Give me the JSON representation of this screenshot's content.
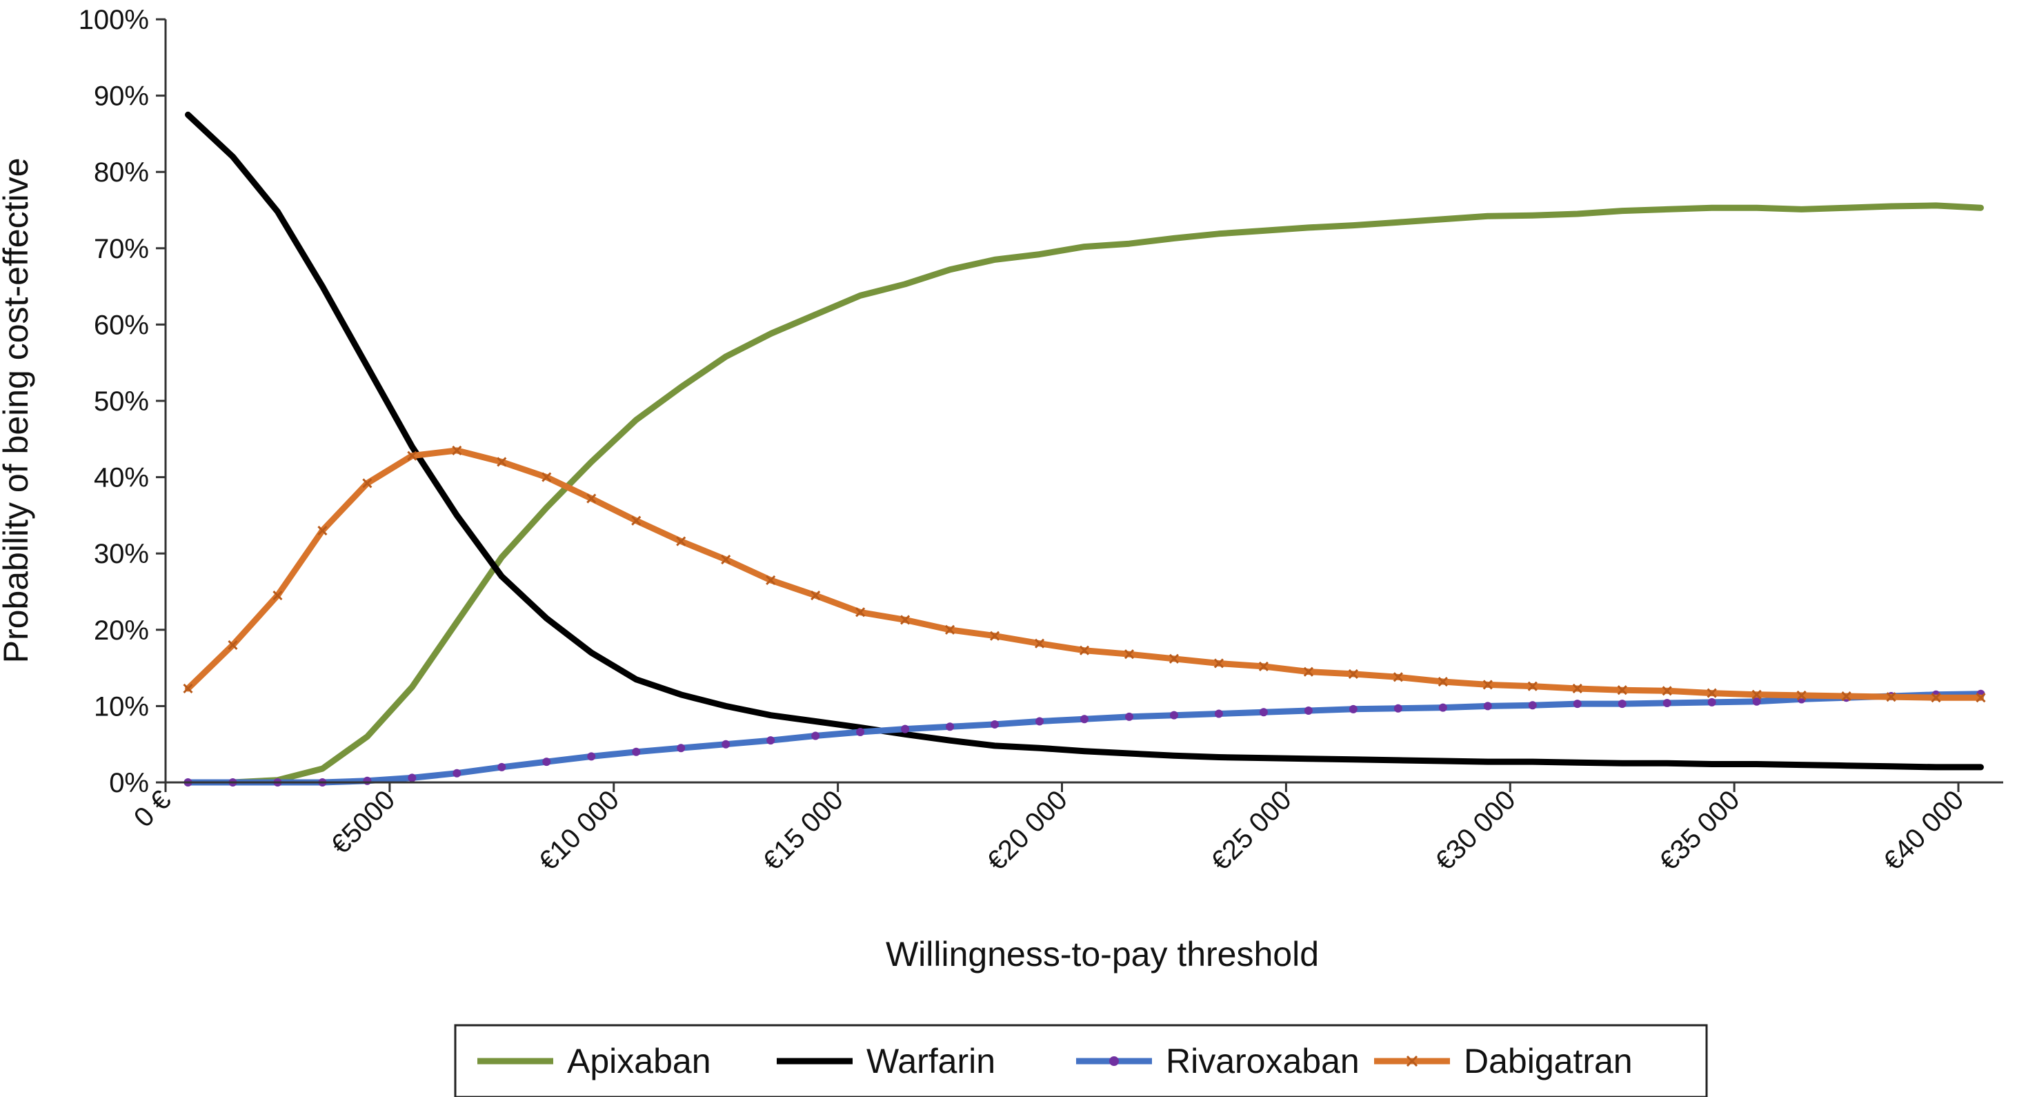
{
  "chart_data": {
    "type": "line",
    "xlabel": "Willingness-to-pay threshold",
    "ylabel": "Probability of being cost-effective",
    "xlim": [
      0,
      41000
    ],
    "ylim": [
      0,
      100
    ],
    "x_ticks": [
      {
        "value": 0,
        "label": "0 €"
      },
      {
        "value": 5000,
        "label": "€5000"
      },
      {
        "value": 10000,
        "label": "€10 000"
      },
      {
        "value": 15000,
        "label": "€15 000"
      },
      {
        "value": 20000,
        "label": "€20 000"
      },
      {
        "value": 25000,
        "label": "€25 000"
      },
      {
        "value": 30000,
        "label": "€30 000"
      },
      {
        "value": 35000,
        "label": "€35 000"
      },
      {
        "value": 40000,
        "label": "€40 000"
      }
    ],
    "y_ticks": [
      {
        "value": 0,
        "label": "0%"
      },
      {
        "value": 10,
        "label": "10%"
      },
      {
        "value": 20,
        "label": "20%"
      },
      {
        "value": 30,
        "label": "30%"
      },
      {
        "value": 40,
        "label": "40%"
      },
      {
        "value": 50,
        "label": "50%"
      },
      {
        "value": 60,
        "label": "60%"
      },
      {
        "value": 70,
        "label": "70%"
      },
      {
        "value": 80,
        "label": "80%"
      },
      {
        "value": 90,
        "label": "90%"
      },
      {
        "value": 100,
        "label": "100%"
      }
    ],
    "grid": false,
    "legend_position": "bottom",
    "x": [
      500,
      1500,
      2500,
      3500,
      4500,
      5500,
      6500,
      7500,
      8500,
      9500,
      10500,
      11500,
      12500,
      13500,
      14500,
      15500,
      16500,
      17500,
      18500,
      19500,
      20500,
      21500,
      22500,
      23500,
      24500,
      25500,
      26500,
      27500,
      28500,
      29500,
      30500,
      31500,
      32500,
      33500,
      34500,
      35500,
      36500,
      37500,
      38500,
      39500,
      40500
    ],
    "series": [
      {
        "name": "Apixaban",
        "color": "#77933C",
        "marker": "none",
        "values": [
          0.0,
          0.0,
          0.3,
          1.8,
          6.0,
          12.5,
          21.0,
          29.5,
          36.0,
          42.0,
          47.5,
          51.8,
          55.8,
          58.8,
          61.3,
          63.8,
          65.3,
          67.2,
          68.5,
          69.2,
          70.2,
          70.6,
          71.3,
          71.9,
          72.3,
          72.7,
          73.0,
          73.4,
          73.8,
          74.2,
          74.3,
          74.5,
          74.9,
          75.1,
          75.3,
          75.3,
          75.1,
          75.3,
          75.5,
          75.6,
          75.3
        ]
      },
      {
        "name": "Warfarin",
        "color": "#000000",
        "marker": "none",
        "values": [
          87.5,
          82.0,
          74.8,
          65.0,
          54.5,
          44.0,
          35.0,
          27.0,
          21.5,
          17.0,
          13.5,
          11.5,
          10.0,
          8.8,
          8.0,
          7.2,
          6.3,
          5.5,
          4.8,
          4.5,
          4.1,
          3.8,
          3.5,
          3.3,
          3.2,
          3.1,
          3.0,
          2.9,
          2.8,
          2.7,
          2.7,
          2.6,
          2.5,
          2.5,
          2.4,
          2.4,
          2.3,
          2.2,
          2.1,
          2.0,
          2.0
        ]
      },
      {
        "name": "Rivaroxaban",
        "color": "#4472C4",
        "marker": "dot",
        "marker_color": "#7030A0",
        "values": [
          0.0,
          0.0,
          0.0,
          0.0,
          0.2,
          0.6,
          1.2,
          2.0,
          2.7,
          3.4,
          4.0,
          4.5,
          5.0,
          5.5,
          6.1,
          6.6,
          7.0,
          7.3,
          7.6,
          8.0,
          8.3,
          8.6,
          8.8,
          9.0,
          9.2,
          9.4,
          9.6,
          9.7,
          9.8,
          10.0,
          10.1,
          10.3,
          10.3,
          10.4,
          10.5,
          10.6,
          10.9,
          11.1,
          11.3,
          11.5,
          11.6
        ]
      },
      {
        "name": "Dabigatran",
        "color": "#D8742B",
        "marker": "cross",
        "values": [
          12.3,
          18.0,
          24.5,
          33.0,
          39.2,
          42.8,
          43.5,
          42.0,
          40.0,
          37.2,
          34.3,
          31.6,
          29.2,
          26.5,
          24.5,
          22.3,
          21.3,
          20.0,
          19.2,
          18.2,
          17.3,
          16.8,
          16.2,
          15.6,
          15.2,
          14.5,
          14.2,
          13.8,
          13.2,
          12.8,
          12.6,
          12.3,
          12.1,
          12.0,
          11.7,
          11.5,
          11.4,
          11.3,
          11.2,
          11.1,
          11.1
        ]
      }
    ]
  }
}
